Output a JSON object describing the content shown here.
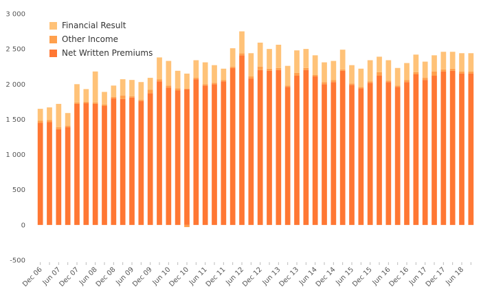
{
  "chart_data": {
    "type": "bar",
    "stacked": true,
    "categories": [
      "Dec 06",
      "",
      "Jun 07",
      "",
      "Dec 07",
      "",
      "Jun 08",
      "",
      "Dec 08",
      "",
      "Jun 09",
      "",
      "Dec 09",
      "",
      "Jun 10",
      "",
      "Dec 10",
      "",
      "Jun 11",
      "",
      "Dec 11",
      "",
      "Jun 12",
      "",
      "Dec 12",
      "",
      "Jun 13",
      "",
      "Dec 13",
      "",
      "Jun 14",
      "",
      "Dec 14",
      "",
      "Jun 15",
      "",
      "Dec 15",
      "",
      "Jun 16",
      "",
      "Dec 16",
      "",
      "Jun 17",
      "",
      "Dec 17",
      "",
      "Jun 18",
      ""
    ],
    "series": [
      {
        "name": "Net Written Premiums",
        "color": "#ff7733",
        "values": [
          1450,
          1460,
          1360,
          1390,
          1720,
          1730,
          1720,
          1690,
          1800,
          1790,
          1810,
          1760,
          1870,
          2040,
          1950,
          1910,
          1930,
          2070,
          1980,
          2000,
          2040,
          2230,
          2410,
          2080,
          2200,
          2190,
          2200,
          1960,
          2120,
          2200,
          2110,
          2000,
          2030,
          2190,
          1990,
          1940,
          2020,
          2120,
          2030,
          1960,
          2030,
          2140,
          2060,
          2120,
          2180,
          2190,
          2150,
          2150
        ]
      },
      {
        "name": "Other Income",
        "color": "#ffa04d",
        "values": [
          30,
          30,
          30,
          20,
          20,
          20,
          20,
          20,
          20,
          50,
          20,
          20,
          50,
          30,
          30,
          30,
          -30,
          20,
          20,
          20,
          20,
          20,
          30,
          30,
          50,
          30,
          30,
          20,
          40,
          30,
          20,
          30,
          30,
          20,
          20,
          20,
          20,
          50,
          20,
          20,
          30,
          30,
          30,
          60,
          30,
          30,
          30,
          30
        ]
      },
      {
        "name": "Financial Result",
        "color": "#ffc278",
        "values": [
          170,
          180,
          330,
          180,
          260,
          180,
          440,
          180,
          160,
          230,
          230,
          250,
          170,
          310,
          350,
          250,
          220,
          250,
          310,
          250,
          160,
          260,
          310,
          330,
          340,
          280,
          330,
          280,
          320,
          270,
          280,
          280,
          270,
          280,
          260,
          260,
          300,
          220,
          290,
          250,
          240,
          250,
          230,
          230,
          250,
          240,
          260,
          260
        ]
      }
    ],
    "ylim": [
      -500,
      3000
    ],
    "yticks": [
      -500,
      0,
      500,
      1000,
      1500,
      2000,
      2500,
      3000
    ],
    "ytick_labels": [
      "-500",
      "0",
      "500",
      "1 000",
      "1 500",
      "2 000",
      "2 500",
      "3 000"
    ],
    "legend_position": "top-left",
    "grid": false
  },
  "legend": {
    "items": [
      {
        "label": "Financial Result",
        "color": "#ffc278"
      },
      {
        "label": "Other Income",
        "color": "#ffa04d"
      },
      {
        "label": "Net Written Premiums",
        "color": "#ff7733"
      }
    ]
  }
}
